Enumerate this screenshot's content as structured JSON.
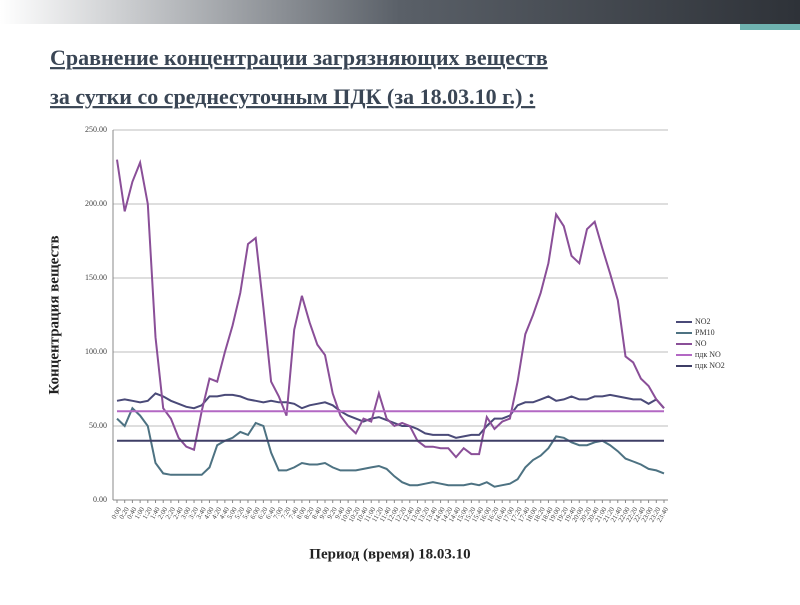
{
  "chart_data": {
    "type": "line",
    "title": [
      "Сравнение концентрации загрязняющих веществ",
      "за сутки со среднесуточным ПДК (за 18.03.10 г.) :"
    ],
    "y_label": "Концентрация веществ",
    "x_label": "Период (время) 18.03.10",
    "categories": [
      "0:00",
      "0:20",
      "0:40",
      "1:00",
      "1:20",
      "1:40",
      "2:00",
      "2:20",
      "2:40",
      "3:00",
      "3:20",
      "3:40",
      "4:00",
      "4:20",
      "4:40",
      "5:00",
      "5:20",
      "5:40",
      "6:00",
      "6:20",
      "6:40",
      "7:00",
      "7:20",
      "7:40",
      "8:00",
      "8:20",
      "8:40",
      "9:00",
      "9:20",
      "9:40",
      "10:00",
      "10:20",
      "10:40",
      "11:00",
      "11:20",
      "11:40",
      "12:00",
      "12:20",
      "12:40",
      "13:00",
      "13:20",
      "13:40",
      "14:00",
      "14:20",
      "14:40",
      "15:00",
      "15:20",
      "15:40",
      "16:00",
      "16:20",
      "16:40",
      "17:00",
      "17:20",
      "17:40",
      "18:00",
      "18:20",
      "18:40",
      "19:00",
      "19:20",
      "19:40",
      "20:00",
      "20:20",
      "20:40",
      "21:00",
      "21:20",
      "21:40",
      "22:00",
      "22:20",
      "22:40",
      "23:00",
      "23:20",
      "23:40"
    ],
    "ylim": [
      0,
      250
    ],
    "yticks": [
      {
        "value": 0,
        "label": "0.00"
      },
      {
        "value": 50,
        "label": "50.00"
      },
      {
        "value": 100,
        "label": "100.00"
      },
      {
        "value": 150,
        "label": "150.00"
      },
      {
        "value": 200,
        "label": "200.00"
      },
      {
        "value": 250,
        "label": "250.00"
      }
    ],
    "grid": true,
    "legend": "right",
    "series": [
      {
        "name": "NO2",
        "color": "#4a4a78",
        "values": [
          67,
          68,
          67,
          66,
          67,
          72,
          70,
          67,
          65,
          63,
          62,
          64,
          70,
          70,
          71,
          71,
          70,
          68,
          67,
          66,
          67,
          66,
          66,
          65,
          62,
          64,
          65,
          66,
          64,
          60,
          57,
          55,
          53,
          55,
          56,
          54,
          52,
          50,
          50,
          48,
          45,
          44,
          44,
          44,
          42,
          43,
          44,
          44,
          50,
          55,
          55,
          57,
          64,
          66,
          66,
          68,
          70,
          67,
          68,
          70,
          68,
          68,
          70,
          70,
          71,
          70,
          69,
          68,
          68,
          65,
          68,
          62
        ]
      },
      {
        "name": "PM10",
        "color": "#4d7282",
        "values": [
          55,
          50,
          62,
          57,
          50,
          25,
          18,
          17,
          17,
          17,
          17,
          17,
          22,
          37,
          40,
          42,
          46,
          44,
          52,
          50,
          32,
          20,
          20,
          22,
          25,
          24,
          24,
          25,
          22,
          20,
          20,
          20,
          21,
          22,
          23,
          21,
          16,
          12,
          10,
          10,
          11,
          12,
          11,
          10,
          10,
          10,
          11,
          10,
          12,
          9,
          10,
          11,
          14,
          22,
          27,
          30,
          35,
          43,
          42,
          39,
          37,
          37,
          39,
          40,
          37,
          33,
          28,
          26,
          24,
          21,
          20,
          18
        ]
      },
      {
        "name": "NO",
        "color": "#8a4f98",
        "values": [
          230,
          195,
          215,
          228,
          200,
          110,
          62,
          55,
          42,
          36,
          34,
          60,
          82,
          80,
          100,
          118,
          140,
          173,
          177,
          130,
          80,
          70,
          57,
          115,
          138,
          120,
          105,
          98,
          72,
          57,
          50,
          45,
          55,
          53,
          72,
          55,
          50,
          52,
          50,
          40,
          36,
          36,
          35,
          35,
          29,
          35,
          31,
          31,
          56,
          48,
          53,
          55,
          80,
          112,
          125,
          140,
          160,
          193,
          185,
          165,
          160,
          183,
          188,
          170,
          153,
          135,
          97,
          93,
          82,
          77,
          68,
          62
        ]
      },
      {
        "name": "пдк NO",
        "color": "#b368c4",
        "values": [
          60,
          60,
          60,
          60,
          60,
          60,
          60,
          60,
          60,
          60,
          60,
          60,
          60,
          60,
          60,
          60,
          60,
          60,
          60,
          60,
          60,
          60,
          60,
          60,
          60,
          60,
          60,
          60,
          60,
          60,
          60,
          60,
          60,
          60,
          60,
          60,
          60,
          60,
          60,
          60,
          60,
          60,
          60,
          60,
          60,
          60,
          60,
          60,
          60,
          60,
          60,
          60,
          60,
          60,
          60,
          60,
          60,
          60,
          60,
          60,
          60,
          60,
          60,
          60,
          60,
          60,
          60,
          60,
          60,
          60,
          60,
          60
        ]
      },
      {
        "name": "пдк NO2",
        "color": "#3e3e66",
        "values": [
          40,
          40,
          40,
          40,
          40,
          40,
          40,
          40,
          40,
          40,
          40,
          40,
          40,
          40,
          40,
          40,
          40,
          40,
          40,
          40,
          40,
          40,
          40,
          40,
          40,
          40,
          40,
          40,
          40,
          40,
          40,
          40,
          40,
          40,
          40,
          40,
          40,
          40,
          40,
          40,
          40,
          40,
          40,
          40,
          40,
          40,
          40,
          40,
          40,
          40,
          40,
          40,
          40,
          40,
          40,
          40,
          40,
          40,
          40,
          40,
          40,
          40,
          40,
          40,
          40,
          40,
          40,
          40,
          40,
          40,
          40,
          40
        ]
      }
    ]
  }
}
